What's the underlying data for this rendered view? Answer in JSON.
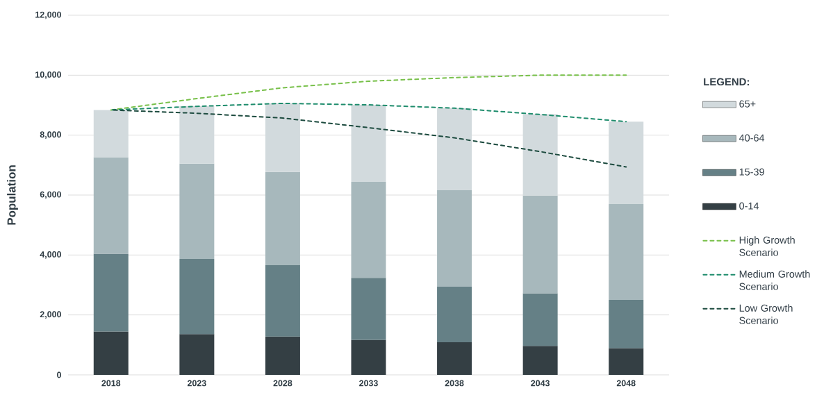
{
  "chart_data": {
    "type": "bar",
    "stacked": true,
    "ylabel": "Population",
    "legend_title": "LEGEND:",
    "categories": [
      "2018",
      "2023",
      "2028",
      "2033",
      "2038",
      "2043",
      "2048"
    ],
    "ylim": [
      0,
      12000
    ],
    "yticks": [
      0,
      {
        "value": 2000,
        "label": "2,000"
      },
      {
        "value": 4000,
        "label": "4,000"
      },
      {
        "value": 6000,
        "label": "6,000"
      },
      {
        "value": 8000,
        "label": "8,000"
      },
      {
        "value": 10000,
        "label": "10,000"
      },
      {
        "value": 12000,
        "label": "12,000"
      }
    ],
    "grid": "y",
    "legend": "right",
    "line_style": "dashed",
    "series": [
      {
        "name": "0-14",
        "color": "#343f44",
        "values": [
          1450,
          1360,
          1280,
          1170,
          1090,
          970,
          890
        ]
      },
      {
        "name": "15-39",
        "color": "#658086",
        "values": [
          2590,
          2510,
          2380,
          2070,
          1850,
          1750,
          1610
        ]
      },
      {
        "name": "40-64",
        "color": "#a7b8bc",
        "values": [
          3220,
          3180,
          3110,
          3200,
          3220,
          3260,
          3200
        ]
      },
      {
        "name": "65+",
        "color": "#d2dadd",
        "values": [
          1580,
          1920,
          2290,
          2570,
          2740,
          2720,
          2750
        ]
      },
      {
        "name": "High Growth Scenario",
        "type": "line",
        "color": "#78c04a",
        "values": [
          8840,
          9220,
          9580,
          9800,
          9920,
          10000,
          10000
        ]
      },
      {
        "name": "Medium Growth Scenario",
        "type": "line",
        "color": "#1e8c6c",
        "values": [
          8840,
          8960,
          9060,
          9010,
          8900,
          8690,
          8450
        ]
      },
      {
        "name": "Low Growth Scenario",
        "type": "line",
        "color": "#1d4b3f",
        "values": [
          8840,
          8730,
          8570,
          8250,
          7910,
          7450,
          6940
        ]
      }
    ]
  }
}
